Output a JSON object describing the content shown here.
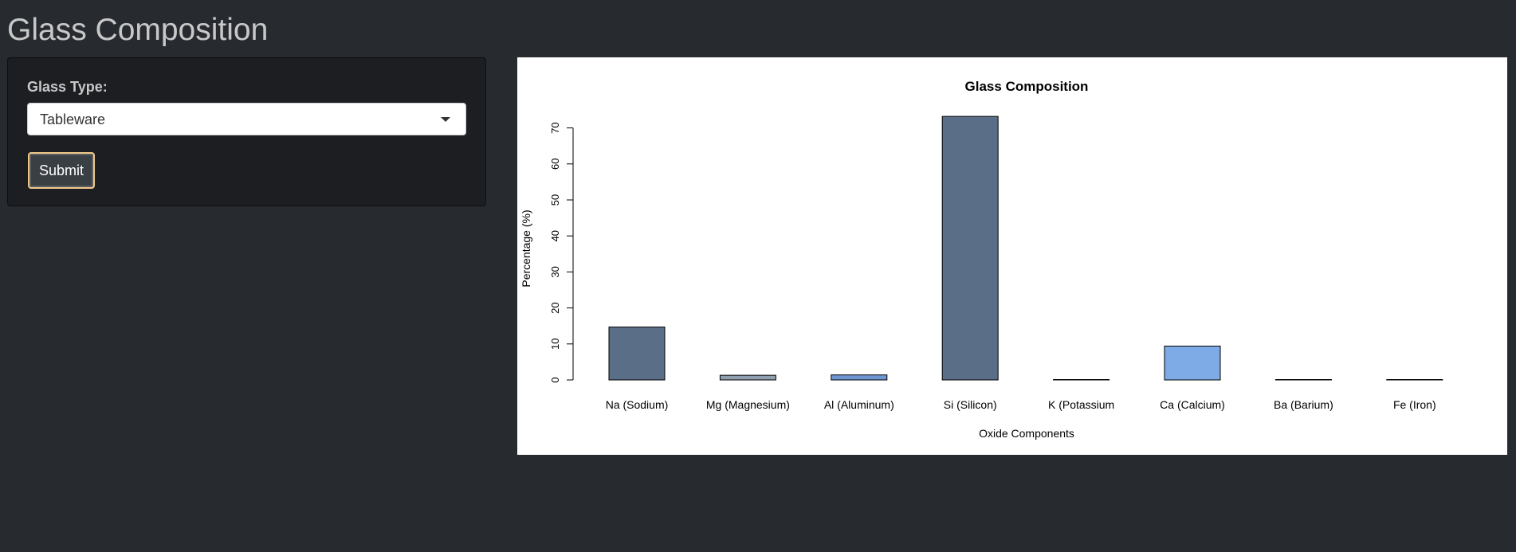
{
  "app": {
    "title": "Glass Composition"
  },
  "sidebar": {
    "field_label": "Glass Type:",
    "select_value": "Tableware",
    "submit_label": "Submit"
  },
  "colors": {
    "page_background": "#272b30",
    "panel_background": "#1c1e22",
    "button_border": "#f0c989"
  },
  "chart_data": {
    "type": "bar",
    "title": "Glass Composition",
    "xlabel": "Oxide Components",
    "ylabel": "Percentage (%)",
    "categories": [
      "Na (Sodium)",
      "Mg (Magnesium)",
      "Al (Aluminum)",
      "Si (Silicon)",
      "K (Potassium",
      "Ca (Calcium)",
      "Ba (Barium)",
      "Fe (Iron)"
    ],
    "values": [
      14.7,
      1.3,
      1.4,
      73.2,
      0.0,
      9.4,
      0.0,
      0.0
    ],
    "colors": [
      "#5a6e87",
      "#8fa1b0",
      "#6e96d0",
      "#5a6e87",
      "#8fa1b0",
      "#7eabe6",
      "#5a6e87",
      "#8fa1b0"
    ],
    "yticks": [
      0,
      10,
      20,
      30,
      40,
      50,
      60,
      70
    ],
    "ylim": [
      0,
      73.2
    ],
    "grid": false,
    "legend": "none"
  }
}
